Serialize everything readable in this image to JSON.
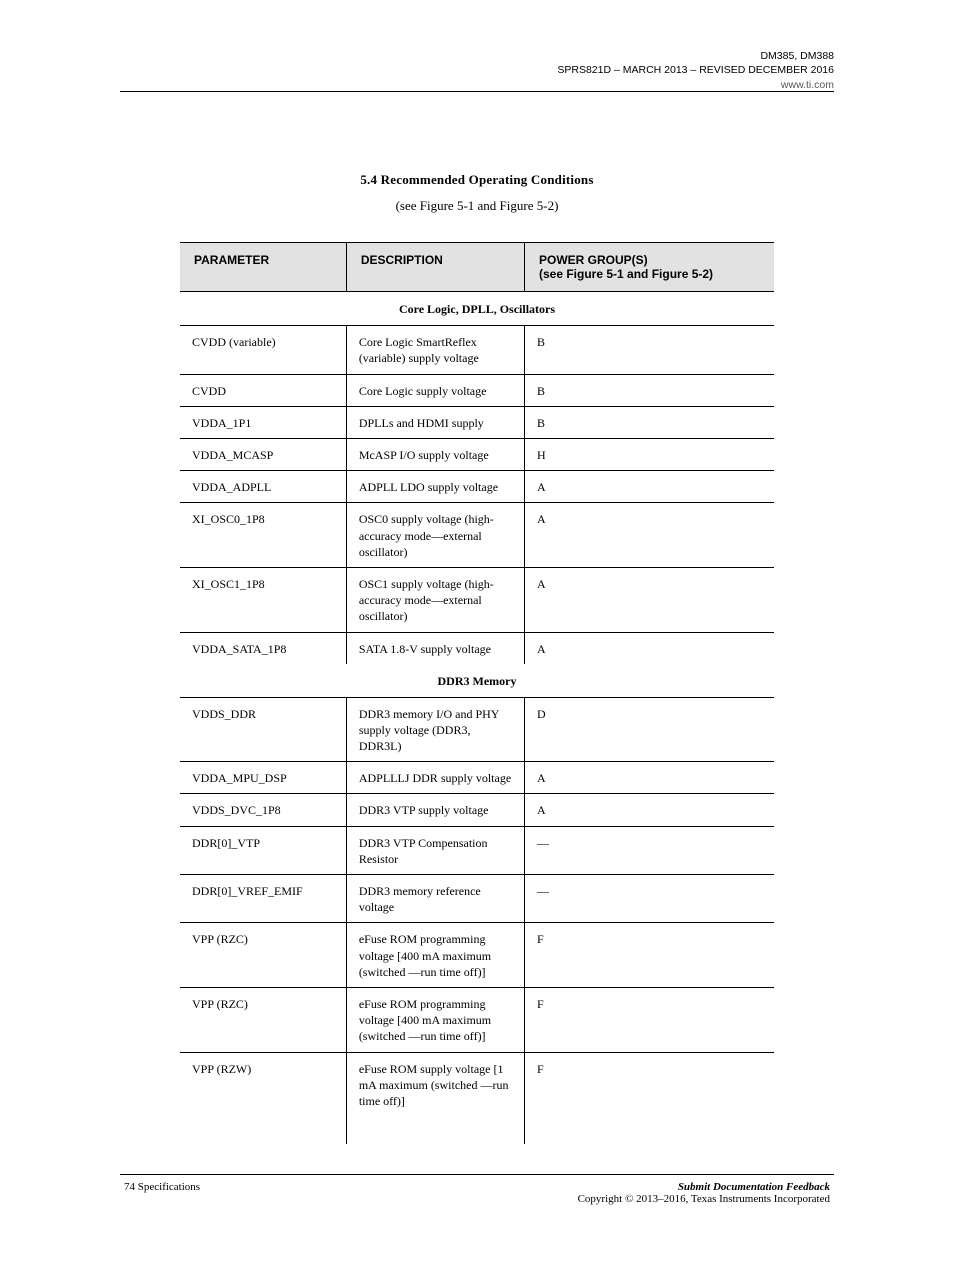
{
  "header": {
    "right": "DM385, DM388\nSPRS821D – MARCH 2013 – REVISED DECEMBER 2016",
    "link": "www.ti.com"
  },
  "section": {
    "title": "5.4 Recommended Operating Conditions",
    "subtitle": "(see Figure 5-1 and Figure 5-2)"
  },
  "table": {
    "columns": [
      "PARAMETER",
      "DESCRIPTION",
      "POWER GROUP(S)\n(see Figure 5-1 and Figure 5-2)"
    ],
    "sections": [
      {
        "heading": "Core Logic, DPLL, Oscillators",
        "rows": [
          [
            "CVDD (variable)",
            "Core Logic SmartReflex (variable) supply voltage",
            "B"
          ],
          [
            "CVDD",
            "Core Logic supply voltage",
            "B"
          ],
          [
            "VDDA_1P1",
            "DPLLs and HDMI supply",
            "B"
          ],
          [
            "VDDA_MCASP",
            "McASP I/O supply voltage",
            "H"
          ],
          [
            "VDDA_ADPLL",
            "ADPLL LDO supply voltage",
            "A"
          ],
          [
            "XI_OSC0_1P8",
            "OSC0 supply voltage (high-accuracy mode—external oscillator)",
            "A"
          ],
          [
            "XI_OSC1_1P8",
            "OSC1 supply voltage (high-accuracy mode—external oscillator)",
            "A"
          ],
          [
            "VDDA_SATA_1P8",
            "SATA 1.8-V supply voltage",
            "A"
          ]
        ]
      },
      {
        "heading": "DDR3 Memory",
        "rows": [
          [
            "VDDS_DDR",
            "DDR3 memory I/O and PHY supply voltage (DDR3, DDR3L)",
            "D"
          ],
          [
            "VDDA_MPU_DSP",
            "ADPLLLJ DDR supply voltage",
            "A"
          ],
          [
            "VDDS_DVC_1P8",
            "DDR3 VTP supply voltage",
            "A"
          ],
          [
            "DDR[0]_VTP",
            "DDR3 VTP Compensation Resistor",
            "—"
          ],
          [
            "DDR[0]_VREF_EMIF",
            "DDR3 memory reference voltage",
            "—"
          ],
          [
            "VPP (RZC)",
            "eFuse ROM programming voltage [400 mA maximum (switched —run time off)]",
            "F"
          ],
          [
            "VPP (RZC)",
            "eFuse ROM programming voltage [400 mA maximum (switched —run time off)]",
            "F"
          ],
          [
            "VPP (RZW)",
            "eFuse ROM supply voltage [1 mA maximum (switched —run time off)]",
            "F"
          ]
        ]
      }
    ]
  },
  "footer": {
    "left": "74    Specifications",
    "right_italic": "Submit Documentation Feedback",
    "right_plain": "Copyright © 2013–2016, Texas Instruments Incorporated"
  },
  "style": {
    "header_bg": "#e2e2e2",
    "border_color": "#000000",
    "body_font": "Times New Roman",
    "header_font": "Arial",
    "body_fontsize": 12,
    "title_fontsize": 13
  }
}
